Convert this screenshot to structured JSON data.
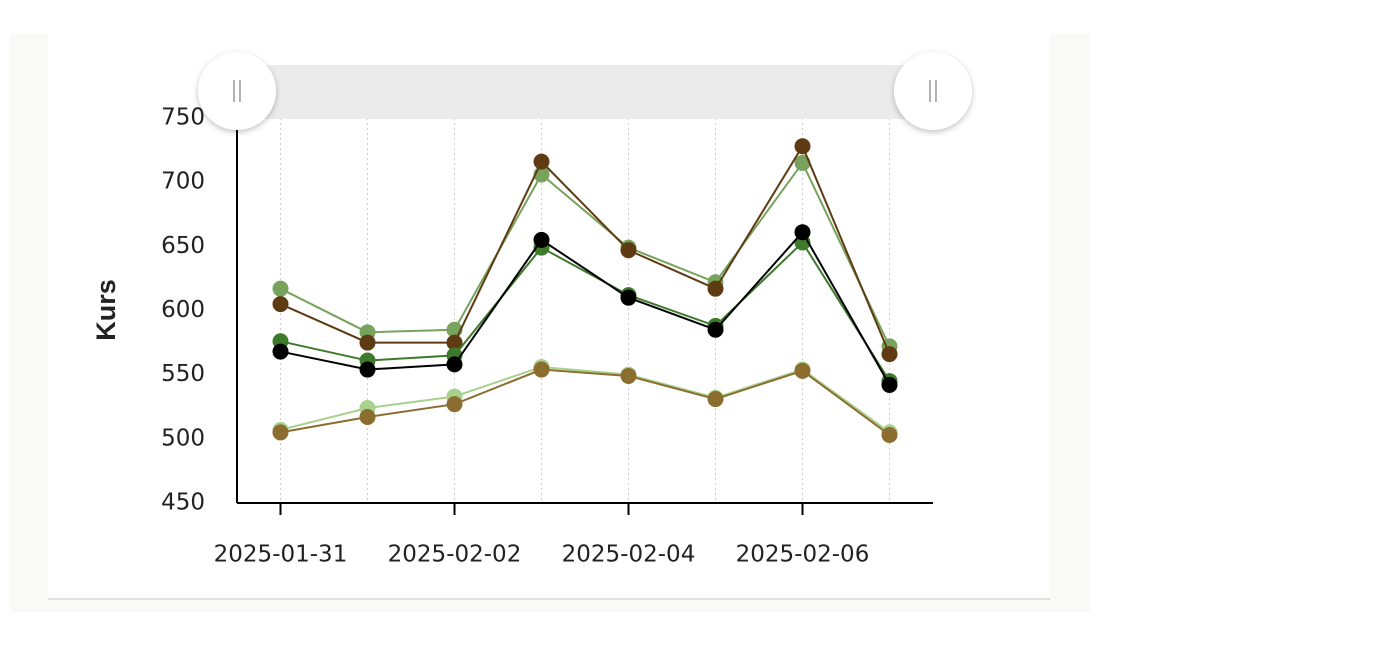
{
  "chart_data": {
    "type": "line",
    "y_label": "Kurs",
    "x": [
      "2025-01-31",
      "2025-02-01",
      "2025-02-02",
      "2025-02-03",
      "2025-02-04",
      "2025-02-05",
      "2025-02-06",
      "2025-02-07"
    ],
    "xlim": [
      "2025-01-31",
      "2025-02-07"
    ],
    "xticks": [
      "2025-01-31",
      "2025-02-02",
      "2025-02-04",
      "2025-02-06"
    ],
    "ylim": [
      450,
      750
    ],
    "yticks": [
      450,
      500,
      550,
      600,
      650,
      700,
      750
    ],
    "grid": true,
    "series": [
      {
        "color": "#a9d18e",
        "values": [
          507,
          524,
          533,
          556,
          550,
          532,
          554,
          505
        ]
      },
      {
        "color": "#8b6d30",
        "values": [
          505,
          517,
          527,
          554,
          549,
          531,
          553,
          503
        ]
      },
      {
        "color": "#77a35c",
        "values": [
          617,
          583,
          585,
          706,
          649,
          622,
          715,
          572
        ]
      },
      {
        "color": "#5e3b13",
        "values": [
          605,
          575,
          575,
          716,
          647,
          617,
          728,
          566
        ]
      },
      {
        "color": "#3e7a2b",
        "values": [
          576,
          561,
          565,
          649,
          612,
          588,
          653,
          545
        ]
      },
      {
        "color": "#000000",
        "values": [
          568,
          554,
          558,
          655,
          610,
          585,
          661,
          542
        ]
      }
    ]
  }
}
